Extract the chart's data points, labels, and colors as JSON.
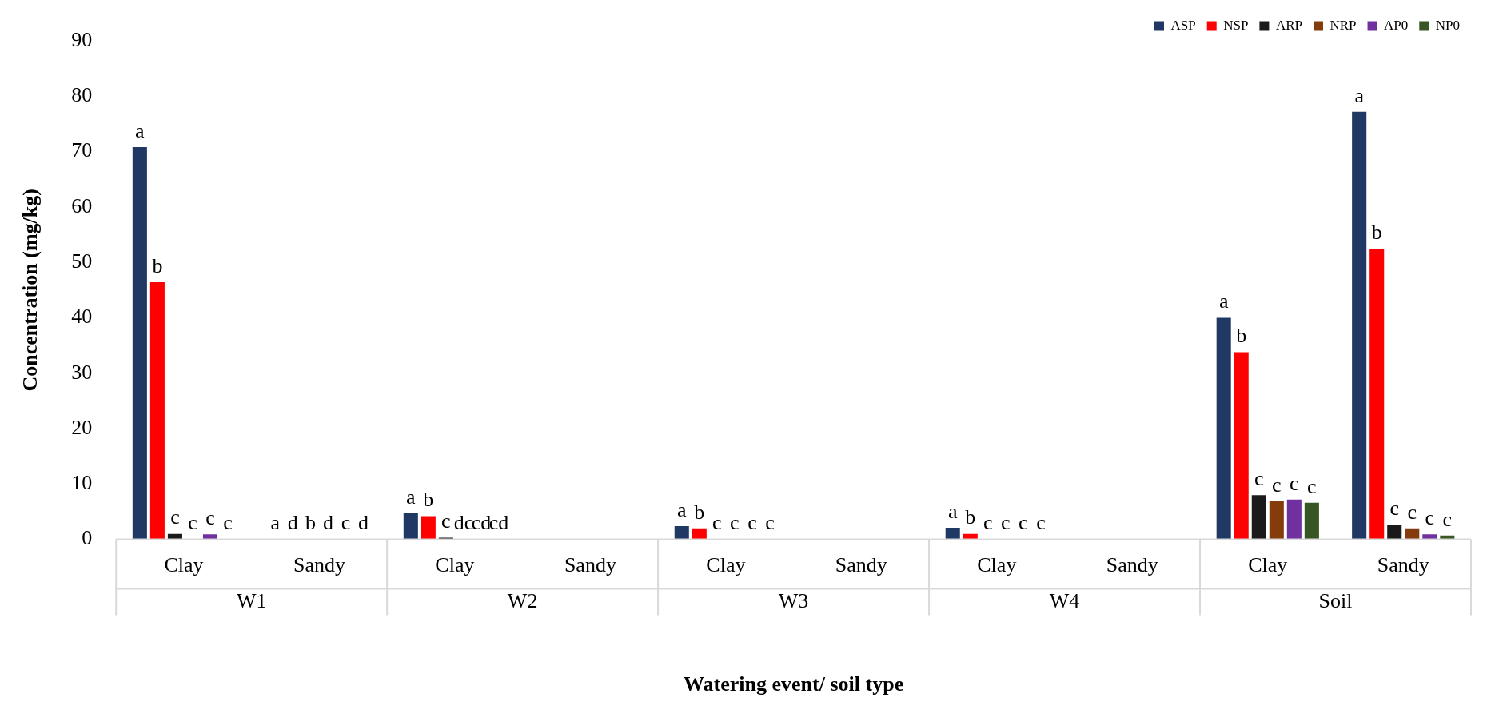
{
  "chart_data": {
    "type": "bar",
    "xlabel": "Watering event/ soil type",
    "ylabel": "Concentration (mg/kg)",
    "categories": [
      "Clay",
      "Sandy",
      "Clay",
      "Sandy",
      "Clay",
      "Sandy",
      "Clay",
      "Sandy",
      "Clay",
      "Sandy"
    ],
    "annotations": [
      "W1",
      "W2",
      "W3",
      "W4",
      "Soil"
    ],
    "ylim": [
      0,
      90
    ],
    "yticks": [
      0,
      10,
      20,
      30,
      40,
      50,
      60,
      70,
      80,
      90
    ],
    "grid": false,
    "legend": "top right",
    "series": [
      {
        "name": "ASP",
        "color": "#203864",
        "values": [
          70.8,
          0.1,
          4.7,
          null,
          2.4,
          null,
          2.1,
          null,
          40,
          77.2
        ],
        "value_labels": [
          "a",
          "a",
          "a",
          null,
          "a",
          null,
          "a",
          null,
          "a",
          "a"
        ]
      },
      {
        "name": "NSP",
        "color": "#ff0000",
        "values": [
          46.4,
          0.1,
          4.2,
          null,
          2.0,
          null,
          1.0,
          null,
          33.8,
          52.4
        ],
        "value_labels": [
          "b",
          "d",
          "b",
          null,
          "b",
          null,
          "b",
          null,
          "b",
          "b"
        ]
      },
      {
        "name": "ARP",
        "color": "#1a1a1a",
        "values": [
          1.0,
          0.1,
          0.3,
          null,
          0.1,
          null,
          0.1,
          null,
          8.0,
          2.6
        ],
        "value_labels": [
          "c",
          "b",
          "c",
          null,
          "c",
          null,
          "c",
          null,
          "c",
          "c"
        ]
      },
      {
        "name": "NRP",
        "color": "#843c0c",
        "values": [
          0.1,
          0.1,
          0.1,
          null,
          0.1,
          null,
          0.1,
          null,
          6.9,
          2.0
        ],
        "value_labels": [
          "c",
          "d",
          "dc",
          null,
          "c",
          null,
          "c",
          null,
          "c",
          "c"
        ]
      },
      {
        "name": "AP0",
        "color": "#7030a0",
        "values": [
          0.9,
          0.1,
          0.1,
          null,
          0.1,
          null,
          0.1,
          null,
          7.2,
          0.9
        ],
        "value_labels": [
          "c",
          "c",
          "cd",
          null,
          "c",
          null,
          "c",
          null,
          "c",
          "c"
        ]
      },
      {
        "name": "NP0",
        "color": "#375623",
        "values": [
          0.1,
          0.1,
          0.1,
          null,
          0.1,
          null,
          0.1,
          null,
          6.6,
          0.7
        ],
        "value_labels": [
          "c",
          "d",
          "cd",
          null,
          "c",
          null,
          "c",
          null,
          "c",
          "c"
        ]
      }
    ]
  }
}
